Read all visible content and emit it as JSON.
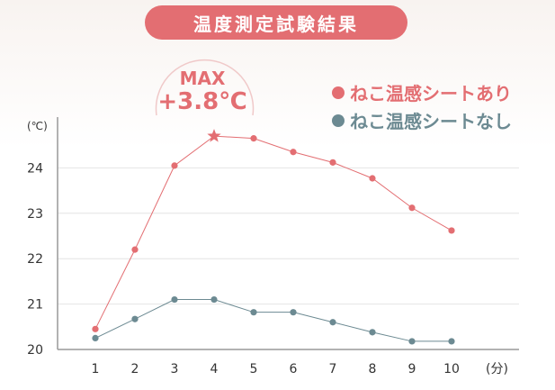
{
  "title": "温度測定試験結果",
  "badge": {
    "label": "MAX",
    "value": "+3.8℃"
  },
  "colors": {
    "with": "#e36e72",
    "without": "#6c8a92"
  },
  "chart_data": {
    "type": "line",
    "title": "温度測定試験結果",
    "x": [
      1,
      2,
      3,
      4,
      5,
      6,
      7,
      8,
      9,
      10
    ],
    "x_tick_labels": [
      "1",
      "2",
      "3",
      "4",
      "5",
      "6",
      "7",
      "8",
      "9",
      "10"
    ],
    "xunit": "(分)",
    "yunit": "(℃)",
    "y_ticks": [
      20,
      21,
      22,
      23,
      24
    ],
    "y_tick_labels": [
      "20",
      "21",
      "22",
      "23",
      "24"
    ],
    "ylim": [
      20,
      25
    ],
    "grid": true,
    "legend_position": "top-right",
    "series": [
      {
        "name": "ねこ温感シートあり",
        "color": "#e36e72",
        "values": [
          20.45,
          22.2,
          24.05,
          24.7,
          24.65,
          24.35,
          24.12,
          23.77,
          23.12,
          22.62
        ],
        "max_marker_index": 3
      },
      {
        "name": "ねこ温感シートなし",
        "color": "#6c8a92",
        "values": [
          20.25,
          20.67,
          21.1,
          21.1,
          20.82,
          20.82,
          20.6,
          20.38,
          20.18,
          20.18
        ]
      }
    ]
  }
}
